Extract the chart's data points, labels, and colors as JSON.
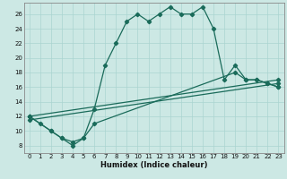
{
  "title": "",
  "xlabel": "Humidex (Indice chaleur)",
  "ylabel": "",
  "bg_color": "#cce8e4",
  "grid_color": "#aad4d0",
  "line_color": "#1a6b5a",
  "xlim": [
    -0.5,
    23.5
  ],
  "ylim": [
    7,
    27.5
  ],
  "xticks": [
    0,
    1,
    2,
    3,
    4,
    5,
    6,
    7,
    8,
    9,
    10,
    11,
    12,
    13,
    14,
    15,
    16,
    17,
    18,
    19,
    20,
    21,
    22,
    23
  ],
  "yticks": [
    8,
    10,
    12,
    14,
    16,
    18,
    20,
    22,
    24,
    26
  ],
  "series1_x": [
    0,
    1,
    2,
    3,
    4,
    5,
    6,
    7,
    8,
    9,
    10,
    11,
    12,
    13,
    14,
    15,
    16,
    17,
    18,
    19,
    20,
    21,
    22,
    23
  ],
  "series1_y": [
    12,
    11,
    10,
    9,
    8,
    9,
    13,
    19,
    22,
    25,
    26,
    25,
    26,
    27,
    26,
    26,
    27,
    24,
    17,
    19,
    17,
    17,
    16.5,
    16
  ],
  "series2_x": [
    0,
    2,
    3,
    4,
    5,
    6,
    19,
    20,
    21,
    22,
    23
  ],
  "series2_y": [
    12,
    10,
    9,
    8.5,
    9,
    11,
    18,
    17,
    17,
    16.5,
    16
  ],
  "series3_x": [
    0,
    23
  ],
  "series3_y": [
    11.5,
    16.5
  ],
  "series4_x": [
    0,
    23
  ],
  "series4_y": [
    12,
    17
  ],
  "marker": "D",
  "markersize": 2.2,
  "linewidth": 0.9,
  "tick_fontsize": 5.0,
  "xlabel_fontsize": 6.0
}
